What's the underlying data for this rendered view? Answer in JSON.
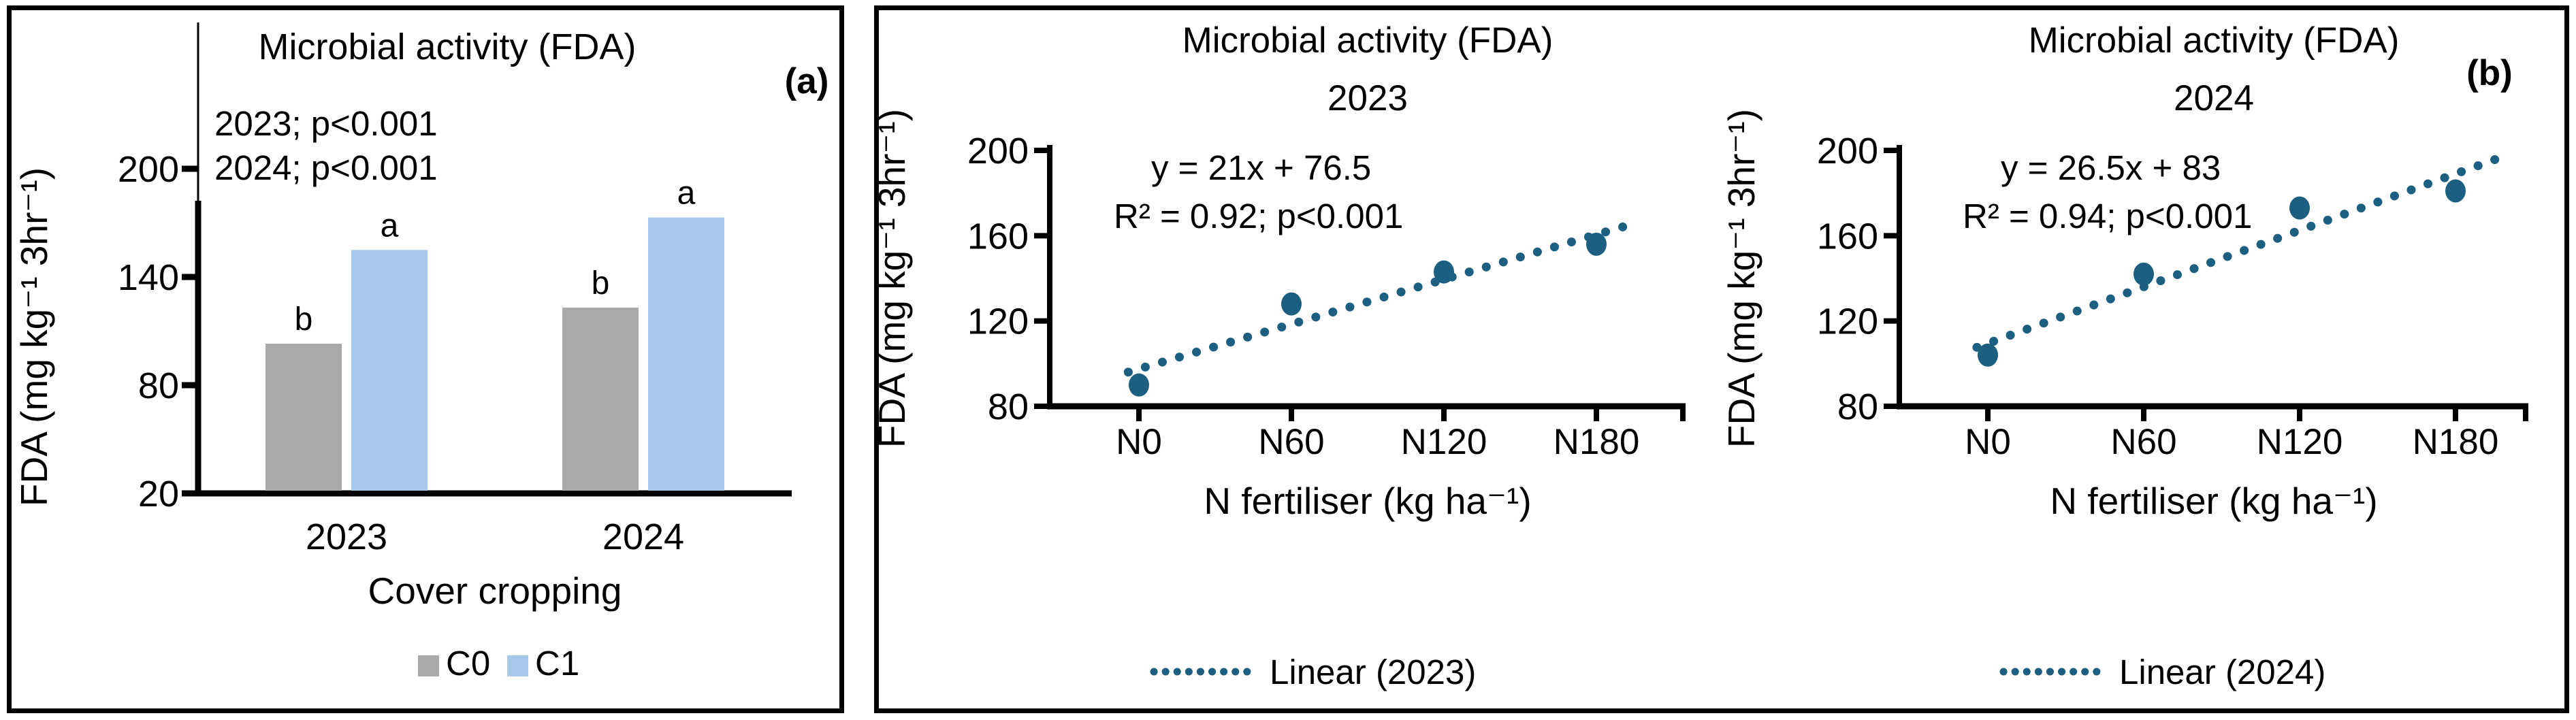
{
  "figure": {
    "panel_a_label": "(a)",
    "panel_b_label": "(b)"
  },
  "colors": {
    "c0_gray": "#A9A9A9",
    "c1_blue": "#A6C9EB",
    "teal": "#1C5F80",
    "axis": "#000000"
  },
  "chart_data": [
    {
      "type": "bar",
      "title": "Microbial activity  (FDA)",
      "corner_label": "(a)",
      "annotation_lines": [
        "2023;  p<0.001",
        "2024;  p<0.001"
      ],
      "categories": [
        "2023",
        "2024"
      ],
      "series": [
        {
          "name": "C0",
          "color_key": "c0_gray",
          "values": [
            103,
            123
          ],
          "sig_letters": [
            "b",
            "b"
          ]
        },
        {
          "name": "C1",
          "color_key": "c1_blue",
          "values": [
            155,
            173
          ],
          "sig_letters": [
            "a",
            "a"
          ]
        }
      ],
      "xlabel": "Cover cropping",
      "ylabel": "FDA (mg kg⁻¹ 3hr⁻¹)",
      "yticks": [
        20,
        80,
        140,
        200
      ],
      "ylim": [
        20,
        200
      ],
      "legend": [
        "C0",
        "C1"
      ],
      "grid": false,
      "legend_position": "bottom"
    },
    {
      "type": "scatter",
      "title": "Microbial activity  (FDA)",
      "subtitle": "2023",
      "equation": "y = 21x + 76.5",
      "stats": "R² = 0.92; p<0.001",
      "categories": [
        "N0",
        "N60",
        "N120",
        "N180"
      ],
      "x": [
        1,
        2,
        3,
        4
      ],
      "values": [
        90,
        128,
        143,
        156
      ],
      "trend": {
        "slope": 21,
        "intercept": 76.5,
        "label": "Linear (2023)",
        "style": "dotted"
      },
      "xlabel": "N fertiliser (kg ha⁻¹)",
      "ylabel": "FDA (mg kg⁻¹ 3hr⁻¹)",
      "yticks": [
        80,
        120,
        160,
        200
      ],
      "ylim": [
        80,
        200
      ],
      "grid": false,
      "legend_position": "bottom"
    },
    {
      "type": "scatter",
      "title": "Microbial activity  (FDA)",
      "subtitle": "2024",
      "corner_label": "(b)",
      "equation": "y = 26.5x + 83",
      "stats": "R² = 0.94;  p<0.001",
      "categories": [
        "N0",
        "N60",
        "N120",
        "N180"
      ],
      "x": [
        1,
        2,
        3,
        4
      ],
      "values": [
        104,
        142,
        173,
        181
      ],
      "trend": {
        "slope": 26.5,
        "intercept": 83,
        "label": "Linear (2024)",
        "style": "dotted"
      },
      "xlabel": "N fertiliser (kg ha⁻¹)",
      "ylabel": "FDA (mg kg⁻¹ 3hr⁻¹)",
      "yticks": [
        80,
        120,
        160,
        200
      ],
      "ylim": [
        80,
        200
      ],
      "grid": false,
      "legend_position": "bottom"
    }
  ]
}
